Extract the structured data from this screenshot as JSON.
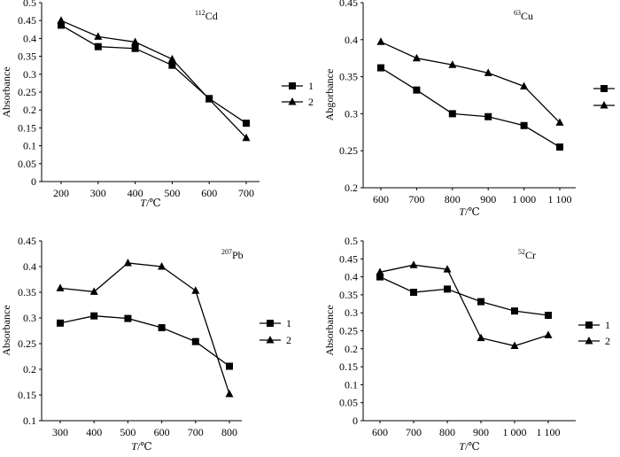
{
  "figure_title": "Absorbance vs temperature",
  "chart_data": [
    {
      "type": "line",
      "element": {
        "sup": "112",
        "symbol": "Cd"
      },
      "xlabel": {
        "var": "T",
        "unit": "/℃"
      },
      "ylabel": "Absorbance",
      "categories": [
        "200",
        "300",
        "400",
        "500",
        "600",
        "700"
      ],
      "ylim": [
        0,
        0.5
      ],
      "yticks": [
        "0",
        "0.05",
        "0.1",
        "0.15",
        "0.2",
        "0.25",
        "0.3",
        "0.35",
        "0.4",
        "0.45",
        "0.5"
      ],
      "legend_position": "right",
      "series": [
        {
          "name": "1",
          "marker": "square",
          "values": [
            0.437,
            0.377,
            0.372,
            0.325,
            0.232,
            0.163
          ]
        },
        {
          "name": "2",
          "marker": "triangle",
          "values": [
            0.45,
            0.405,
            0.39,
            0.342,
            0.23,
            0.122
          ]
        }
      ]
    },
    {
      "type": "line",
      "element": {
        "sup": "63",
        "symbol": "Cu"
      },
      "xlabel": {
        "var": "T",
        "unit": "/℃"
      },
      "ylabel": "Abgorbance",
      "categories": [
        "600",
        "700",
        "800",
        "900",
        "1 000",
        "1 100"
      ],
      "ylim": [
        0.2,
        0.45
      ],
      "yticks": [
        "0.2",
        "0.25",
        "0.3",
        "0.35",
        "0.4",
        "0.45"
      ],
      "legend_position": "right",
      "series": [
        {
          "name": "1",
          "marker": "square",
          "values": [
            0.362,
            0.332,
            0.3,
            0.296,
            0.284,
            0.255
          ]
        },
        {
          "name": "2",
          "marker": "triangle",
          "values": [
            0.397,
            0.375,
            0.366,
            0.355,
            0.337,
            0.288
          ]
        }
      ]
    },
    {
      "type": "line",
      "element": {
        "sup": "207",
        "symbol": "Pb"
      },
      "xlabel": {
        "var": "T",
        "unit": "/℃"
      },
      "ylabel": "Absorbance",
      "categories": [
        "300",
        "400",
        "500",
        "600",
        "700",
        "800"
      ],
      "ylim": [
        0.1,
        0.45
      ],
      "yticks": [
        "0.1",
        "0.15",
        "0.2",
        "0.25",
        "0.3",
        "0.35",
        "0.4",
        "0.45"
      ],
      "legend_position": "right",
      "series": [
        {
          "name": "1",
          "marker": "square",
          "values": [
            0.29,
            0.304,
            0.299,
            0.281,
            0.254,
            0.206
          ]
        },
        {
          "name": "2",
          "marker": "triangle",
          "values": [
            0.358,
            0.351,
            0.407,
            0.4,
            0.353,
            0.152
          ]
        }
      ]
    },
    {
      "type": "line",
      "element": {
        "sup": "52",
        "symbol": "Cr"
      },
      "xlabel": {
        "var": "T",
        "unit": "/℃"
      },
      "ylabel": "Absorbance",
      "categories": [
        "600",
        "700",
        "800",
        "900",
        "1 000",
        "1 100"
      ],
      "ylim": [
        0,
        0.5
      ],
      "yticks": [
        "0",
        "0.05",
        "0.1",
        "0.15",
        "0.2",
        "0.25",
        "0.3",
        "0.35",
        "0.4",
        "0.45",
        "0.5"
      ],
      "legend_position": "right",
      "series": [
        {
          "name": "1",
          "marker": "square",
          "values": [
            0.4,
            0.357,
            0.366,
            0.331,
            0.305,
            0.293
          ]
        },
        {
          "name": "2",
          "marker": "triangle",
          "values": [
            0.413,
            0.433,
            0.421,
            0.23,
            0.208,
            0.238
          ]
        }
      ]
    }
  ]
}
